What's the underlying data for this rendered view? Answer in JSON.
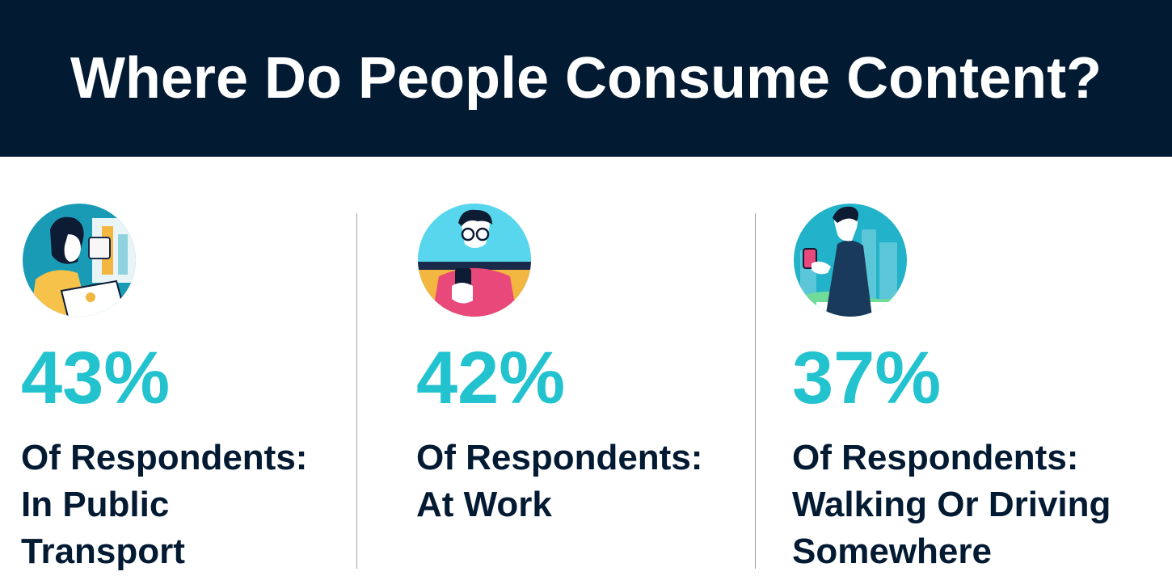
{
  "title": "Where Do People Consume Content?",
  "stats": [
    {
      "value": "43%",
      "label": "Of Respondents:",
      "lines": [
        "In Public",
        "Transport"
      ],
      "icon": "woman-with-laptop-icon"
    },
    {
      "value": "42%",
      "label": "Of Respondents:",
      "lines": [
        "At Work"
      ],
      "icon": "man-with-phone-icon"
    },
    {
      "value": "37%",
      "label": "Of Respondents:",
      "lines": [
        "Walking Or Driving",
        "Somewhere"
      ],
      "icon": "walking-man-with-phone-icon"
    }
  ],
  "colors": {
    "header_bg": "#031a33",
    "accent": "#22c2cf",
    "text": "#031a33"
  }
}
